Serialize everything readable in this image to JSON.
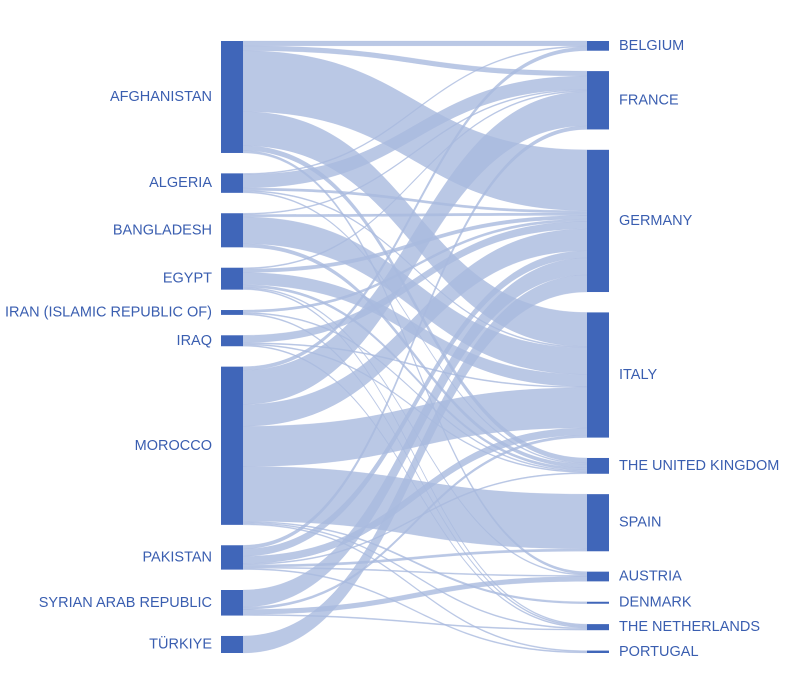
{
  "colors": {
    "node": "#4066b9",
    "link": "#a9badf",
    "label": "#3a5eb0"
  },
  "chart_data": {
    "type": "sankey",
    "sources": [
      {
        "id": "afghanistan",
        "label": "AFGHANISTAN"
      },
      {
        "id": "algeria",
        "label": "ALGERIA"
      },
      {
        "id": "bangladesh",
        "label": "BANGLADESH"
      },
      {
        "id": "egypt",
        "label": "EGYPT"
      },
      {
        "id": "iran",
        "label": "IRAN (ISLAMIC REPUBLIC OF)"
      },
      {
        "id": "iraq",
        "label": "IRAQ"
      },
      {
        "id": "morocco",
        "label": "MOROCCO"
      },
      {
        "id": "pakistan",
        "label": "PAKISTAN"
      },
      {
        "id": "syria",
        "label": "SYRIAN ARAB REPUBLIC"
      },
      {
        "id": "turkiye",
        "label": "TÜRKIYE"
      }
    ],
    "targets": [
      {
        "id": "belgium",
        "label": "BELGIUM"
      },
      {
        "id": "france",
        "label": "FRANCE"
      },
      {
        "id": "germany",
        "label": "GERMANY"
      },
      {
        "id": "italy",
        "label": "ITALY"
      },
      {
        "id": "uk",
        "label": "THE UNITED KINGDOM"
      },
      {
        "id": "spain",
        "label": "SPAIN"
      },
      {
        "id": "austria",
        "label": "AUSTRIA"
      },
      {
        "id": "denmark",
        "label": "DENMARK"
      },
      {
        "id": "netherlands",
        "label": "THE NETHERLANDS"
      },
      {
        "id": "portugal",
        "label": "PORTUGAL"
      }
    ],
    "links": [
      {
        "source": "afghanistan",
        "target": "belgium",
        "value": 4
      },
      {
        "source": "afghanistan",
        "target": "france",
        "value": 4
      },
      {
        "source": "afghanistan",
        "target": "germany",
        "value": 50
      },
      {
        "source": "afghanistan",
        "target": "italy",
        "value": 28
      },
      {
        "source": "afghanistan",
        "target": "uk",
        "value": 4
      },
      {
        "source": "afghanistan",
        "target": "austria",
        "value": 2
      },
      {
        "source": "algeria",
        "target": "belgium",
        "value": 1
      },
      {
        "source": "algeria",
        "target": "france",
        "value": 11
      },
      {
        "source": "algeria",
        "target": "germany",
        "value": 2
      },
      {
        "source": "algeria",
        "target": "italy",
        "value": 1
      },
      {
        "source": "algeria",
        "target": "uk",
        "value": 1
      },
      {
        "source": "bangladesh",
        "target": "france",
        "value": 1
      },
      {
        "source": "bangladesh",
        "target": "germany",
        "value": 2
      },
      {
        "source": "bangladesh",
        "target": "italy",
        "value": 22
      },
      {
        "source": "bangladesh",
        "target": "uk",
        "value": 3
      },
      {
        "source": "egypt",
        "target": "france",
        "value": 1
      },
      {
        "source": "egypt",
        "target": "germany",
        "value": 3
      },
      {
        "source": "egypt",
        "target": "italy",
        "value": 10
      },
      {
        "source": "egypt",
        "target": "uk",
        "value": 2
      },
      {
        "source": "egypt",
        "target": "netherlands",
        "value": 1
      },
      {
        "source": "egypt",
        "target": "austria",
        "value": 1
      },
      {
        "source": "iran",
        "target": "germany",
        "value": 2
      },
      {
        "source": "iran",
        "target": "uk",
        "value": 1
      },
      {
        "source": "iran",
        "target": "netherlands",
        "value": 1
      },
      {
        "source": "iraq",
        "target": "germany",
        "value": 6
      },
      {
        "source": "iraq",
        "target": "italy",
        "value": 1
      },
      {
        "source": "iraq",
        "target": "uk",
        "value": 1
      },
      {
        "source": "iraq",
        "target": "netherlands",
        "value": 1
      },
      {
        "source": "morocco",
        "target": "belgium",
        "value": 3
      },
      {
        "source": "morocco",
        "target": "france",
        "value": 28
      },
      {
        "source": "morocco",
        "target": "germany",
        "value": 18
      },
      {
        "source": "morocco",
        "target": "italy",
        "value": 33
      },
      {
        "source": "morocco",
        "target": "spain",
        "value": 45
      },
      {
        "source": "morocco",
        "target": "denmark",
        "value": 1
      },
      {
        "source": "morocco",
        "target": "netherlands",
        "value": 1
      },
      {
        "source": "morocco",
        "target": "portugal",
        "value": 1
      },
      {
        "source": "pakistan",
        "target": "france",
        "value": 3
      },
      {
        "source": "pakistan",
        "target": "germany",
        "value": 6
      },
      {
        "source": "pakistan",
        "target": "italy",
        "value": 6
      },
      {
        "source": "pakistan",
        "target": "spain",
        "value": 2
      },
      {
        "source": "pakistan",
        "target": "uk",
        "value": 1
      },
      {
        "source": "pakistan",
        "target": "austria",
        "value": 1
      },
      {
        "source": "pakistan",
        "target": "portugal",
        "value": 1
      },
      {
        "source": "syria",
        "target": "germany",
        "value": 14
      },
      {
        "source": "syria",
        "target": "italy",
        "value": 2
      },
      {
        "source": "syria",
        "target": "austria",
        "value": 4
      },
      {
        "source": "syria",
        "target": "netherlands",
        "value": 1
      },
      {
        "source": "turkiye",
        "target": "germany",
        "value": 14
      }
    ]
  }
}
